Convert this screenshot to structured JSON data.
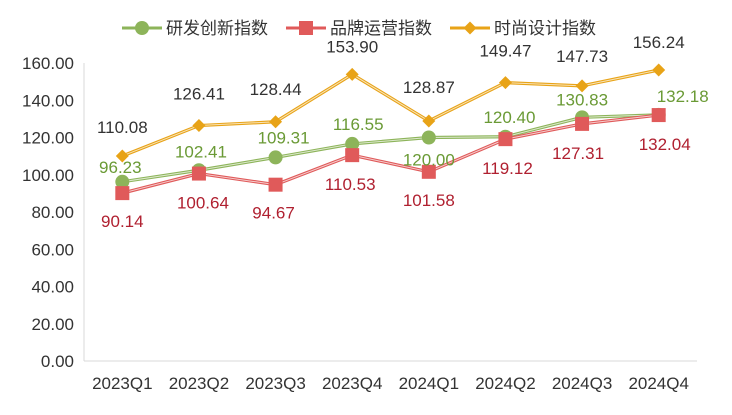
{
  "chart_data": {
    "type": "line",
    "title": "",
    "xlabel": "",
    "ylabel": "",
    "categories": [
      "2023Q1",
      "2023Q2",
      "2023Q3",
      "2023Q4",
      "2024Q1",
      "2024Q2",
      "2024Q3",
      "2024Q4"
    ],
    "ylim": [
      0,
      160
    ],
    "y_ticks": [
      "0.00",
      "20.00",
      "40.00",
      "60.00",
      "80.00",
      "100.00",
      "120.00",
      "140.00",
      "160.00"
    ],
    "grid": false,
    "legend_position": "top",
    "series": [
      {
        "name": "研发创新指数",
        "color": "#8db45a",
        "label_color": "#6a9a35",
        "marker": "circle",
        "values": [
          96.23,
          102.41,
          109.31,
          116.55,
          120.0,
          120.4,
          130.83,
          132.18
        ],
        "labels": [
          "96.23",
          "102.41",
          "109.31",
          "116.55",
          "120.00",
          "120.40",
          "130.83",
          "132.18"
        ]
      },
      {
        "name": "品牌运营指数",
        "color": "#e05a5a",
        "label_color": "#b02030",
        "marker": "square",
        "values": [
          90.14,
          100.64,
          94.67,
          110.53,
          101.58,
          119.12,
          127.31,
          132.04
        ],
        "labels": [
          "90.14",
          "100.64",
          "94.67",
          "110.53",
          "101.58",
          "119.12",
          "127.31",
          "132.04"
        ]
      },
      {
        "name": "时尚设计指数",
        "color": "#e8a317",
        "label_color": "#333333",
        "marker": "diamond",
        "values": [
          110.08,
          126.41,
          128.44,
          153.9,
          128.87,
          149.47,
          147.73,
          156.24
        ],
        "labels": [
          "110.08",
          "126.41",
          "128.44",
          "153.90",
          "128.87",
          "149.47",
          "147.73",
          "156.24"
        ]
      }
    ]
  }
}
